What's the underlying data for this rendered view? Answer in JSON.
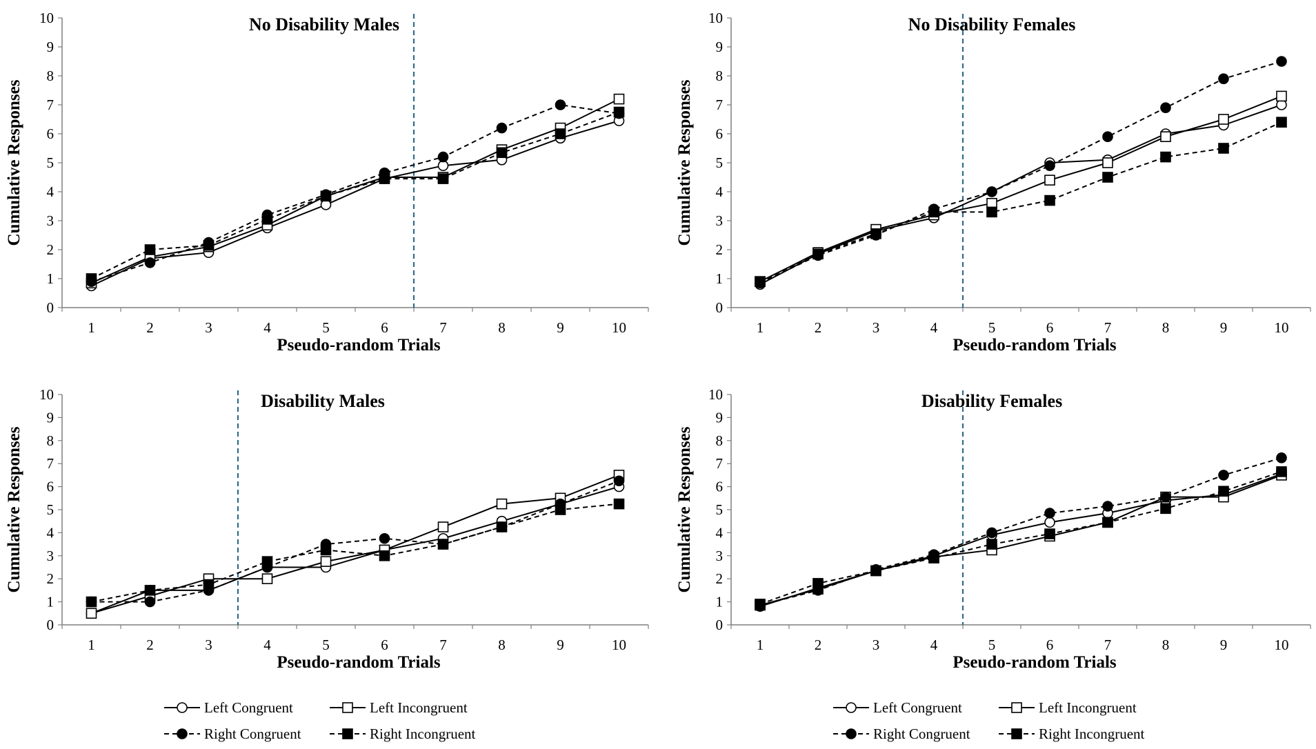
{
  "chart_data": [
    {
      "type": "line",
      "title": "No Disability Males",
      "xlabel": "Pseudo-random Trials",
      "ylabel": "Cumulative Responses",
      "x": [
        1,
        2,
        3,
        4,
        5,
        6,
        7,
        8,
        9,
        10
      ],
      "x_tick_labels": [
        "1",
        "2",
        "3",
        "4",
        "5",
        "6",
        "7",
        "8",
        "9",
        "10"
      ],
      "y_tick_labels": [
        "0",
        "1",
        "2",
        "3",
        "4",
        "5",
        "6",
        "7",
        "8",
        "9",
        "10"
      ],
      "xlim": [
        0.5,
        10.5
      ],
      "ylim": [
        0,
        10
      ],
      "divider_x": 6.5,
      "series": [
        {
          "name": "Left Congruent",
          "values": [
            0.75,
            1.7,
            1.9,
            2.75,
            3.55,
            4.45,
            4.9,
            5.1,
            5.85,
            6.45
          ]
        },
        {
          "name": "Left Incongruent",
          "values": [
            0.85,
            1.75,
            2.1,
            2.85,
            3.85,
            4.5,
            4.5,
            5.45,
            6.2,
            7.2
          ]
        },
        {
          "name": "Right Congruent",
          "values": [
            0.9,
            1.55,
            2.25,
            3.2,
            3.9,
            4.65,
            5.2,
            6.2,
            7.0,
            6.7
          ]
        },
        {
          "name": "Right Incongruent",
          "values": [
            1.0,
            2.0,
            2.15,
            3.05,
            3.85,
            4.45,
            4.45,
            5.35,
            6.0,
            6.75
          ]
        }
      ]
    },
    {
      "type": "line",
      "title": "No Disability Females",
      "xlabel": "Pseudo-random Trials",
      "ylabel": "Cumulative Responses",
      "x": [
        1,
        2,
        3,
        4,
        5,
        6,
        7,
        8,
        9,
        10
      ],
      "x_tick_labels": [
        "1",
        "2",
        "3",
        "4",
        "5",
        "6",
        "7",
        "8",
        "9",
        "10"
      ],
      "y_tick_labels": [
        "0",
        "1",
        "2",
        "3",
        "4",
        "5",
        "6",
        "7",
        "8",
        "9",
        "10"
      ],
      "xlim": [
        0.5,
        10.5
      ],
      "ylim": [
        0,
        10
      ],
      "divider_x": 4.5,
      "series": [
        {
          "name": "Left Congruent",
          "values": [
            0.8,
            1.85,
            2.65,
            3.1,
            4.0,
            5.0,
            5.1,
            6.0,
            6.3,
            7.0
          ]
        },
        {
          "name": "Left Incongruent",
          "values": [
            0.9,
            1.9,
            2.7,
            3.2,
            3.6,
            4.4,
            5.0,
            5.9,
            6.5,
            7.3
          ]
        },
        {
          "name": "Right Congruent",
          "values": [
            0.85,
            1.8,
            2.5,
            3.4,
            4.0,
            4.9,
            5.9,
            6.9,
            7.9,
            8.5
          ]
        },
        {
          "name": "Right Incongruent",
          "values": [
            0.9,
            1.85,
            2.55,
            3.3,
            3.3,
            3.7,
            4.5,
            5.2,
            5.5,
            6.4
          ]
        }
      ]
    },
    {
      "type": "line",
      "title": "Disability Males",
      "xlabel": "Pseudo-random Trials",
      "ylabel": "Cumulative Responses",
      "x": [
        1,
        2,
        3,
        4,
        5,
        6,
        7,
        8,
        9,
        10
      ],
      "x_tick_labels": [
        "1",
        "2",
        "3",
        "4",
        "5",
        "6",
        "7",
        "8",
        "9",
        "10"
      ],
      "y_tick_labels": [
        "0",
        "1",
        "2",
        "3",
        "4",
        "5",
        "6",
        "7",
        "8",
        "9",
        "10"
      ],
      "xlim": [
        0.5,
        10.5
      ],
      "ylim": [
        0,
        10
      ],
      "divider_x": 3.5,
      "series": [
        {
          "name": "Left Congruent",
          "values": [
            0.5,
            1.5,
            1.5,
            2.5,
            2.5,
            3.25,
            3.75,
            4.5,
            5.25,
            6.0
          ]
        },
        {
          "name": "Left Incongruent",
          "values": [
            0.5,
            1.25,
            2.0,
            2.0,
            2.75,
            3.25,
            4.25,
            5.25,
            5.5,
            6.5
          ]
        },
        {
          "name": "Right Congruent",
          "values": [
            1.0,
            1.0,
            1.5,
            2.5,
            3.5,
            3.75,
            3.5,
            4.25,
            5.25,
            6.25
          ]
        },
        {
          "name": "Right Incongruent",
          "values": [
            1.0,
            1.5,
            1.75,
            2.75,
            3.25,
            3.0,
            3.5,
            4.25,
            5.0,
            5.25
          ]
        }
      ]
    },
    {
      "type": "line",
      "title": "Disability Females",
      "xlabel": "Pseudo-random Trials",
      "ylabel": "Cumulative Responses",
      "x": [
        1,
        2,
        3,
        4,
        5,
        6,
        7,
        8,
        9,
        10
      ],
      "x_tick_labels": [
        "1",
        "2",
        "3",
        "4",
        "5",
        "6",
        "7",
        "8",
        "9",
        "10"
      ],
      "y_tick_labels": [
        "0",
        "1",
        "2",
        "3",
        "4",
        "5",
        "6",
        "7",
        "8",
        "9",
        "10"
      ],
      "xlim": [
        0.5,
        10.5
      ],
      "ylim": [
        0,
        10
      ],
      "divider_x": 4.5,
      "series": [
        {
          "name": "Left Congruent",
          "values": [
            0.8,
            1.6,
            2.35,
            3.0,
            3.9,
            4.45,
            4.85,
            5.4,
            5.65,
            6.55
          ]
        },
        {
          "name": "Left Incongruent",
          "values": [
            0.85,
            1.55,
            2.35,
            2.95,
            3.25,
            3.85,
            4.45,
            5.55,
            5.55,
            6.5
          ]
        },
        {
          "name": "Right Congruent",
          "values": [
            0.85,
            1.5,
            2.4,
            3.05,
            4.0,
            4.85,
            5.15,
            5.55,
            6.5,
            7.25
          ]
        },
        {
          "name": "Right Incongruent",
          "values": [
            0.9,
            1.8,
            2.35,
            2.9,
            3.5,
            3.95,
            4.45,
            5.05,
            5.8,
            6.65
          ]
        }
      ]
    }
  ],
  "legend": {
    "entries": [
      {
        "label": "Left Congruent"
      },
      {
        "label": "Left Incongruent"
      },
      {
        "label": "Right Congruent"
      },
      {
        "label": "Right Incongruent"
      }
    ]
  },
  "series_styles": [
    {
      "name": "Left Congruent",
      "line": "solid",
      "marker": "circle",
      "fill": "#ffffff"
    },
    {
      "name": "Left Incongruent",
      "line": "solid",
      "marker": "square",
      "fill": "#ffffff"
    },
    {
      "name": "Right Congruent",
      "line": "dashed",
      "marker": "circle",
      "fill": "#000000"
    },
    {
      "name": "Right Incongruent",
      "line": "dashed",
      "marker": "square",
      "fill": "#000000"
    }
  ],
  "colors": {
    "line": "#000000",
    "axis": "#7f7f7f",
    "divider": "#2f6b8a",
    "background": "#ffffff"
  }
}
